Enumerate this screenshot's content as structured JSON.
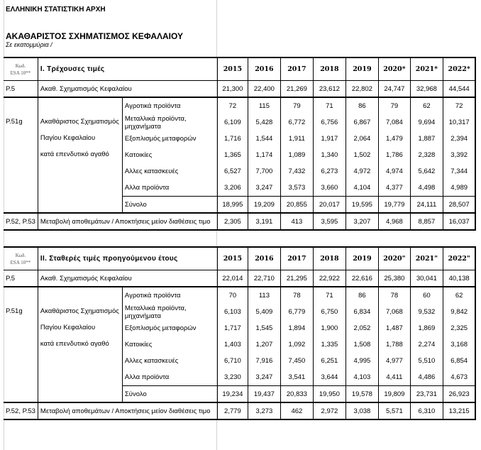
{
  "header": {
    "org": "ΕΛΛΗΝΙΚΗ ΣΤΑΤΙΣΤΙΚΗ ΑΡΧΗ",
    "title": "ΑΚΑΘΑΡΙΣΤΟΣ ΣΧΗΜΑΤΙΣΜΟΣ ΚΕΦΑΛΑΙΟΥ",
    "unit": "Σε εκατομμύρια /"
  },
  "code_header": [
    "Κωδ.",
    "ESA 10**"
  ],
  "labels": {
    "p5_code": "P.5",
    "p5_label": "Ακαθ. Σχηματισμός Κεφαλαίου",
    "p51_code": "P.51g",
    "p51_lines": [
      "Ακαθάριστος Σχηματισμός",
      "Παγίου Κεφαλαίου",
      "κατά επενδυτικό αγαθό"
    ],
    "subs": [
      "Αγροτικά προϊόντα",
      "Μεταλλικά προϊόντα, μηχανήματα",
      "Εξοπλισμός  μεταφορών",
      "Κατοικίες",
      "Αλλες κατασκευές",
      "Αλλα προϊόντα"
    ],
    "total": "Σύνολο",
    "p52_code": "P.52, P.53",
    "p52_label": "Μεταβολή αποθεμάτων / Αποκτήσεις μείον διαθέσεις τιμο"
  },
  "sections": [
    {
      "title": "I. Τρέχουσες τιμές",
      "years": [
        "2015",
        "2016",
        "2017",
        "2018",
        "2019",
        "2020*",
        "2021*",
        "2022*"
      ],
      "p5": [
        "21,300",
        "22,400",
        "21,269",
        "23,612",
        "22,802",
        "24,747",
        "32,968",
        "44,544"
      ],
      "subs": [
        [
          "72",
          "115",
          "79",
          "71",
          "86",
          "79",
          "62",
          "72"
        ],
        [
          "6,109",
          "5,428",
          "6,772",
          "6,756",
          "6,867",
          "7,084",
          "9,694",
          "10,317"
        ],
        [
          "1,716",
          "1,544",
          "1,911",
          "1,917",
          "2,064",
          "1,479",
          "1,887",
          "2,394"
        ],
        [
          "1,365",
          "1,174",
          "1,089",
          "1,340",
          "1,502",
          "1,786",
          "2,328",
          "3,392"
        ],
        [
          "6,527",
          "7,700",
          "7,432",
          "6,273",
          "4,972",
          "4,974",
          "5,642",
          "7,344"
        ],
        [
          "3,206",
          "3,247",
          "3,573",
          "3,660",
          "4,104",
          "4,377",
          "4,498",
          "4,989"
        ]
      ],
      "total": [
        "18,995",
        "19,209",
        "20,855",
        "20,017",
        "19,595",
        "19,779",
        "24,111",
        "28,507"
      ],
      "p52": [
        "2,305",
        "3,191",
        "413",
        "3,595",
        "3,207",
        "4,968",
        "8,857",
        "16,037"
      ]
    },
    {
      "title": "II. Σταθερές τιμές προηγούμενου έτους",
      "years": [
        "2015",
        "2016",
        "2017",
        "2018",
        "2019",
        "2020\"",
        "2021\"",
        "2022\""
      ],
      "p5": [
        "22,014",
        "22,710",
        "21,295",
        "22,922",
        "22,616",
        "25,380",
        "30,041",
        "40,138"
      ],
      "subs": [
        [
          "70",
          "113",
          "78",
          "71",
          "86",
          "78",
          "60",
          "62"
        ],
        [
          "6,103",
          "5,409",
          "6,779",
          "6,750",
          "6,834",
          "7,068",
          "9,532",
          "9,842"
        ],
        [
          "1,717",
          "1,545",
          "1,894",
          "1,900",
          "2,052",
          "1,487",
          "1,869",
          "2,325"
        ],
        [
          "1,403",
          "1,207",
          "1,092",
          "1,335",
          "1,508",
          "1,788",
          "2,274",
          "3,168"
        ],
        [
          "6,710",
          "7,916",
          "7,450",
          "6,251",
          "4,995",
          "4,977",
          "5,510",
          "6,854"
        ],
        [
          "3,230",
          "3,247",
          "3,541",
          "3,644",
          "4,103",
          "4,411",
          "4,486",
          "4,673"
        ]
      ],
      "total": [
        "19,234",
        "19,437",
        "20,833",
        "19,950",
        "19,578",
        "19,809",
        "23,731",
        "26,923"
      ],
      "p52": [
        "2,779",
        "3,273",
        "462",
        "2,972",
        "3,038",
        "5,571",
        "6,310",
        "13,215"
      ]
    }
  ]
}
